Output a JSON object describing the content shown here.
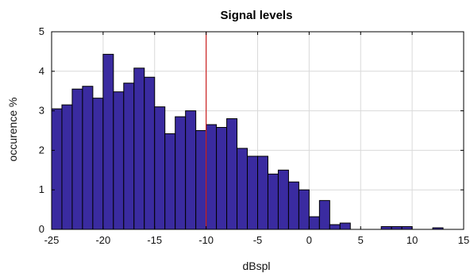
{
  "chart_data": {
    "type": "bar",
    "title": "Signal levels",
    "xlabel": "dBspl",
    "ylabel": "occurence %",
    "xlim": [
      -25,
      15
    ],
    "ylim": [
      0,
      5
    ],
    "xticks": [
      -25,
      -20,
      -15,
      -10,
      -5,
      0,
      5,
      10,
      15
    ],
    "yticks": [
      0,
      1,
      2,
      3,
      4,
      5
    ],
    "grid": true,
    "bin_width": 1,
    "bar_color": "#3a2ba0",
    "bar_edge_color": "#000000",
    "reference_line": {
      "x": -10,
      "color": "#cc2222"
    },
    "bins": [
      {
        "x": -25,
        "value": 3.05
      },
      {
        "x": -24,
        "value": 3.15
      },
      {
        "x": -23,
        "value": 3.55
      },
      {
        "x": -22,
        "value": 3.62
      },
      {
        "x": -21,
        "value": 3.32
      },
      {
        "x": -20,
        "value": 4.43
      },
      {
        "x": -19,
        "value": 3.48
      },
      {
        "x": -18,
        "value": 3.7
      },
      {
        "x": -17,
        "value": 4.08
      },
      {
        "x": -16,
        "value": 3.85
      },
      {
        "x": -15,
        "value": 3.1
      },
      {
        "x": -14,
        "value": 2.42
      },
      {
        "x": -13,
        "value": 2.85
      },
      {
        "x": -12,
        "value": 3.0
      },
      {
        "x": -11,
        "value": 2.5
      },
      {
        "x": -10,
        "value": 2.65
      },
      {
        "x": -9,
        "value": 2.58
      },
      {
        "x": -8,
        "value": 2.8
      },
      {
        "x": -7,
        "value": 2.05
      },
      {
        "x": -6,
        "value": 1.85
      },
      {
        "x": -5,
        "value": 1.85
      },
      {
        "x": -4,
        "value": 1.4
      },
      {
        "x": -3,
        "value": 1.5
      },
      {
        "x": -2,
        "value": 1.2
      },
      {
        "x": -1,
        "value": 1.0
      },
      {
        "x": 0,
        "value": 0.32
      },
      {
        "x": 1,
        "value": 0.73
      },
      {
        "x": 2,
        "value": 0.12
      },
      {
        "x": 3,
        "value": 0.16
      },
      {
        "x": 7,
        "value": 0.07
      },
      {
        "x": 8,
        "value": 0.07
      },
      {
        "x": 9,
        "value": 0.07
      },
      {
        "x": 12,
        "value": 0.04
      }
    ]
  }
}
